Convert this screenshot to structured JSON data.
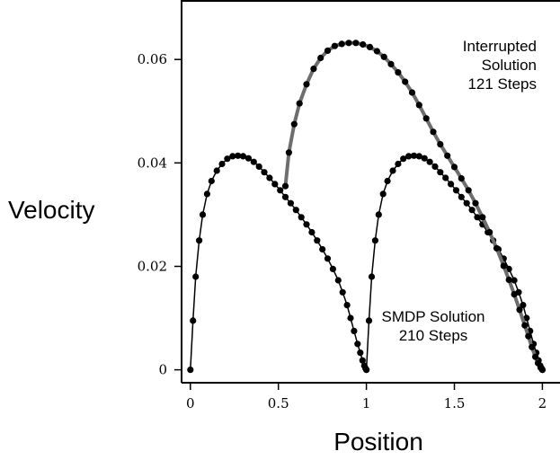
{
  "chart_data": {
    "type": "line",
    "xlabel": "Position",
    "ylabel": "Velocity",
    "xlim": [
      -0.05,
      2.1
    ],
    "ylim": [
      -0.0025,
      0.0715
    ],
    "xticks": [
      "0",
      "0.5",
      "1",
      "1.5",
      "2"
    ],
    "xtick_values": [
      0,
      0.5,
      1,
      1.5,
      2
    ],
    "yticks": [
      "0",
      "0.02",
      "0.04",
      "0.06"
    ],
    "ytick_values": [
      0,
      0.02,
      0.04,
      0.06
    ],
    "grid": false,
    "annotations": [
      {
        "lines": [
          "Interrupted",
          "Solution",
          "121 Steps"
        ]
      },
      {
        "lines": [
          "SMDP Solution",
          "210 Steps"
        ]
      }
    ],
    "series": [
      {
        "color": "#000000",
        "marker": "dot",
        "x": [
          0.0,
          0.015,
          0.03,
          0.05,
          0.07,
          0.095,
          0.12,
          0.15,
          0.18,
          0.21,
          0.24,
          0.27,
          0.3,
          0.33,
          0.36,
          0.39,
          0.42,
          0.45,
          0.48,
          0.51,
          0.54,
          0.57,
          0.6,
          0.63,
          0.66,
          0.69,
          0.72,
          0.75,
          0.78,
          0.81,
          0.84,
          0.865,
          0.89,
          0.91,
          0.93,
          0.95,
          0.965,
          0.978,
          0.988,
          0.995,
          1.0
        ],
        "y": [
          0.0,
          0.0095,
          0.018,
          0.025,
          0.03,
          0.034,
          0.0365,
          0.0385,
          0.0398,
          0.0408,
          0.0413,
          0.0414,
          0.0413,
          0.0409,
          0.0402,
          0.0393,
          0.0382,
          0.0371,
          0.0359,
          0.0347,
          0.0334,
          0.0322,
          0.0309,
          0.0295,
          0.0281,
          0.0266,
          0.025,
          0.0233,
          0.0215,
          0.0195,
          0.0173,
          0.015,
          0.0125,
          0.01,
          0.0075,
          0.005,
          0.0033,
          0.0018,
          0.0008,
          0.0003,
          0.0
        ]
      },
      {
        "color": "#000000",
        "marker": "dot",
        "x": [
          1.0,
          1.015,
          1.03,
          1.05,
          1.07,
          1.095,
          1.12,
          1.15,
          1.18,
          1.21,
          1.24,
          1.27,
          1.3,
          1.33,
          1.36,
          1.39,
          1.42,
          1.45,
          1.48,
          1.51,
          1.54,
          1.57,
          1.6,
          1.63,
          1.66,
          1.69,
          1.72,
          1.75,
          1.78,
          1.81,
          1.84,
          1.865,
          1.89,
          1.91,
          1.93,
          1.95,
          1.965,
          1.978,
          1.988,
          1.995,
          2.0
        ],
        "y": [
          0.0,
          0.0095,
          0.018,
          0.025,
          0.03,
          0.034,
          0.0365,
          0.0385,
          0.0398,
          0.0408,
          0.0413,
          0.0414,
          0.0413,
          0.0409,
          0.0402,
          0.0393,
          0.0382,
          0.0371,
          0.0359,
          0.0347,
          0.0334,
          0.0322,
          0.0309,
          0.0295,
          0.0281,
          0.0266,
          0.025,
          0.0233,
          0.0215,
          0.0195,
          0.0173,
          0.015,
          0.0125,
          0.01,
          0.0075,
          0.005,
          0.0033,
          0.0018,
          0.0008,
          0.0003,
          0.0
        ]
      },
      {
        "color": "#6e6e6e",
        "marker": "dot",
        "x": [
          0.54,
          0.56,
          0.59,
          0.62,
          0.66,
          0.7,
          0.74,
          0.78,
          0.82,
          0.86,
          0.9,
          0.94,
          0.98,
          1.02,
          1.06,
          1.1,
          1.14,
          1.18,
          1.22,
          1.26,
          1.3,
          1.34,
          1.38,
          1.42,
          1.46,
          1.5,
          1.54,
          1.58,
          1.62,
          1.66,
          1.7,
          1.74,
          1.78,
          1.81,
          1.84,
          1.87,
          1.9,
          1.92,
          1.94,
          1.96,
          1.975,
          1.99,
          2.0
        ],
        "y": [
          0.0355,
          0.042,
          0.0475,
          0.0515,
          0.0552,
          0.0582,
          0.0603,
          0.0617,
          0.0626,
          0.063,
          0.0632,
          0.0632,
          0.0629,
          0.0624,
          0.0616,
          0.0605,
          0.0591,
          0.0575,
          0.0557,
          0.0536,
          0.0512,
          0.0486,
          0.046,
          0.0436,
          0.0414,
          0.0392,
          0.037,
          0.0347,
          0.0322,
          0.0295,
          0.0266,
          0.0235,
          0.0201,
          0.0174,
          0.0146,
          0.0116,
          0.0086,
          0.0065,
          0.0044,
          0.0025,
          0.0013,
          0.0004,
          0.0
        ]
      }
    ]
  }
}
